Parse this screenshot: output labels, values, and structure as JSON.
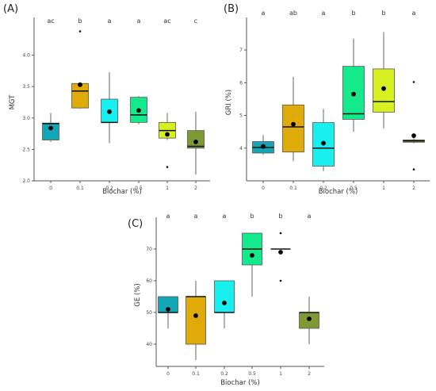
{
  "chart_data": [
    {
      "type": "box",
      "panel_label": "(A)",
      "xlabel": "Biochar (%)",
      "ylabel": "MGT",
      "ylim": [
        2.0,
        4.5
      ],
      "yticks": [
        "2.0",
        "2.5",
        "3.0",
        "3.5",
        "4.0"
      ],
      "categories": [
        "0",
        "0.1",
        "0.2",
        "0.5",
        "1",
        "2"
      ],
      "letters": [
        "ac",
        "b",
        "a",
        "a",
        "ac",
        "c"
      ],
      "colors": [
        "#14a6b4",
        "#e0aa08",
        "#18f0f0",
        "#14ea8c",
        "#d6f020",
        "#7e9a34"
      ],
      "boxes": [
        {
          "min": 2.62,
          "q1": 2.65,
          "median": 2.91,
          "q3": 2.92,
          "max": 3.08,
          "mean": 2.84,
          "outliers": []
        },
        {
          "min": 3.15,
          "q1": 3.16,
          "median": 3.43,
          "q3": 3.55,
          "max": 3.55,
          "mean": 3.53,
          "outliers": [
            4.38
          ]
        },
        {
          "min": 2.6,
          "q1": 2.93,
          "median": 2.93,
          "q3": 3.3,
          "max": 3.73,
          "mean": 3.1,
          "outliers": []
        },
        {
          "min": 2.9,
          "q1": 2.93,
          "median": 3.05,
          "q3": 3.33,
          "max": 3.35,
          "mean": 3.12,
          "outliers": []
        },
        {
          "min": 2.65,
          "q1": 2.68,
          "median": 2.8,
          "q3": 2.93,
          "max": 3.08,
          "mean": 2.74,
          "outliers": [
            2.22
          ]
        },
        {
          "min": 2.1,
          "q1": 2.52,
          "median": 2.55,
          "q3": 2.8,
          "max": 3.1,
          "mean": 2.62,
          "outliers": []
        }
      ]
    },
    {
      "type": "box",
      "panel_label": "(B)",
      "xlabel": "Biochar (%)",
      "ylabel": "GRI (%)",
      "ylim": [
        3.0,
        7.8
      ],
      "yticks": [
        "4",
        "5",
        "6",
        "7"
      ],
      "categories": [
        "0",
        "0.1",
        "0.2",
        "0.5",
        "1",
        "2"
      ],
      "letters": [
        "a",
        "ab",
        "a",
        "b",
        "b",
        "a"
      ],
      "colors": [
        "#14a6b4",
        "#e0aa08",
        "#18f0f0",
        "#14ea8c",
        "#d6f020",
        "#7e9a34"
      ],
      "boxes": [
        {
          "min": 3.8,
          "q1": 3.85,
          "median": 4.02,
          "q3": 4.2,
          "max": 4.4,
          "mean": 4.05,
          "outliers": []
        },
        {
          "min": 3.6,
          "q1": 3.88,
          "median": 4.65,
          "q3": 5.32,
          "max": 6.18,
          "mean": 4.73,
          "outliers": []
        },
        {
          "min": 3.3,
          "q1": 3.45,
          "median": 4.0,
          "q3": 4.78,
          "max": 5.2,
          "mean": 4.15,
          "outliers": []
        },
        {
          "min": 4.5,
          "q1": 4.88,
          "median": 5.05,
          "q3": 6.5,
          "max": 7.35,
          "mean": 5.65,
          "outliers": []
        },
        {
          "min": 4.6,
          "q1": 5.1,
          "median": 5.42,
          "q3": 6.42,
          "max": 7.55,
          "mean": 5.82,
          "outliers": []
        },
        {
          "min": 4.15,
          "q1": 4.18,
          "median": 4.22,
          "q3": 4.25,
          "max": 4.3,
          "mean": 4.38,
          "outliers": [
            6.02,
            3.35
          ]
        }
      ]
    },
    {
      "type": "box",
      "panel_label": "(C)",
      "xlabel": "Biochar (%)",
      "ylabel": "GE (%)",
      "ylim": [
        33,
        78
      ],
      "yticks": [
        "40",
        "50",
        "60",
        "70"
      ],
      "categories": [
        "0",
        "0.1",
        "0.2",
        "0.5",
        "1",
        "2"
      ],
      "letters": [
        "a",
        "a",
        "a",
        "b",
        "b",
        "a"
      ],
      "colors": [
        "#14a6b4",
        "#e0aa08",
        "#18f0f0",
        "#14ea8c",
        "#d6f020",
        "#7e9a34"
      ],
      "boxes": [
        {
          "min": 45,
          "q1": 50,
          "median": 50,
          "q3": 55,
          "max": 55,
          "mean": 51,
          "outliers": []
        },
        {
          "min": 35,
          "q1": 40,
          "median": 55,
          "q3": 55,
          "max": 60,
          "mean": 49,
          "outliers": []
        },
        {
          "min": 45,
          "q1": 50,
          "median": 50,
          "q3": 60,
          "max": 60,
          "mean": 53,
          "outliers": []
        },
        {
          "min": 55,
          "q1": 65,
          "median": 70,
          "q3": 75,
          "max": 75,
          "mean": 68,
          "outliers": []
        },
        {
          "min": 70,
          "q1": 70,
          "median": 70,
          "q3": 70,
          "max": 70,
          "mean": 69,
          "outliers": [
            75,
            60
          ]
        },
        {
          "min": 40,
          "q1": 45,
          "median": 50,
          "q3": 50,
          "max": 55,
          "mean": 48,
          "outliers": []
        }
      ]
    }
  ]
}
